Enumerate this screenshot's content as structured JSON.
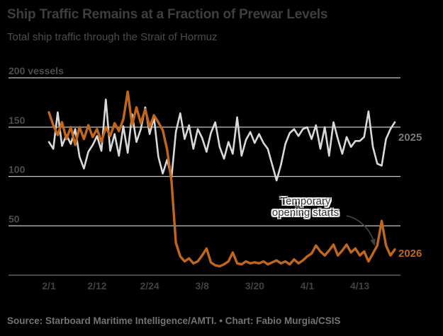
{
  "header": {
    "title": "Ship Traffic Remains at a Fraction of Prewar Levels",
    "subtitle": "Total ship traffic through the Strait of Hormuz"
  },
  "annotation": {
    "line1": "Temporary",
    "line2": "opening starts"
  },
  "series_labels": {
    "s2025": "2025",
    "s2026": "2026"
  },
  "footer": {
    "text": "Source: Starboard Maritime Intelligence/AMTI. • Chart: Fabio Murgia/CSIS"
  },
  "colors": {
    "background": "#000000",
    "gridline": "#c6c6c6",
    "baseline_axis": "#474747",
    "x_tick_text": "#414141",
    "y_tick_text": "#4c4c4c",
    "series_2025": "#d9d9d9",
    "series_2026": "#c2661c",
    "arrow": "#3f3f3f"
  },
  "chart_data": {
    "type": "line",
    "title": "Ship Traffic Remains at a Fraction of Prewar Levels",
    "subtitle": "Total ship traffic through the Strait of Hormuz",
    "xlabel": "",
    "ylabel": "vessels",
    "ylim": [
      0,
      210
    ],
    "grid": "horizontal",
    "legend_position": "right-end-of-line",
    "x_unit": "daily, Feb 1 – Apr 21",
    "x_tick_labels": [
      "2/1",
      "2/12",
      "2/24",
      "3/8",
      "3/20",
      "4/1",
      "4/13"
    ],
    "x_tick_day_index": [
      0,
      11,
      23,
      35,
      47,
      59,
      71
    ],
    "y_ticks": [
      {
        "value": 0,
        "label": ""
      },
      {
        "value": 50,
        "label": "50"
      },
      {
        "value": 100,
        "label": "100"
      },
      {
        "value": 150,
        "label": "150"
      },
      {
        "value": 200,
        "label": "200 vessels"
      }
    ],
    "series": [
      {
        "name": "2025",
        "values": [
          135,
          128,
          165,
          131,
          142,
          133,
          148,
          120,
          108,
          125,
          132,
          141,
          126,
          178,
          126,
          143,
          121,
          151,
          124,
          163,
          135,
          148,
          170,
          143,
          160,
          120,
          103,
          117,
          99,
          145,
          164,
          138,
          152,
          128,
          148,
          139,
          125,
          144,
          155,
          130,
          118,
          135,
          123,
          160,
          121,
          137,
          145,
          134,
          143,
          134,
          128,
          112,
          96,
          112,
          133,
          144,
          148,
          141,
          148,
          150,
          138,
          152,
          128,
          150,
          121,
          155,
          138,
          123,
          140,
          130,
          136,
          136,
          140,
          166,
          130,
          113,
          111,
          138,
          148,
          155
        ]
      },
      {
        "name": "2026",
        "values": [
          165,
          152,
          142,
          155,
          138,
          150,
          132,
          150,
          138,
          152,
          140,
          148,
          135,
          150,
          141,
          154,
          146,
          158,
          186,
          152,
          170,
          154,
          168,
          150,
          162,
          155,
          147,
          127,
          95,
          33,
          19,
          14,
          17,
          12,
          14,
          20,
          27,
          13,
          10,
          9,
          11,
          14,
          23,
          12,
          11,
          14,
          12,
          13,
          12,
          14,
          11,
          13,
          15,
          12,
          14,
          11,
          16,
          12,
          15,
          19,
          22,
          30,
          24,
          20,
          25,
          31,
          20,
          25,
          31,
          23,
          27,
          20,
          24,
          14,
          22,
          30,
          55,
          30,
          20,
          26
        ]
      }
    ],
    "annotation": {
      "text": "Temporary opening starts",
      "points_to_series": "2026",
      "points_to_value": 30
    }
  }
}
